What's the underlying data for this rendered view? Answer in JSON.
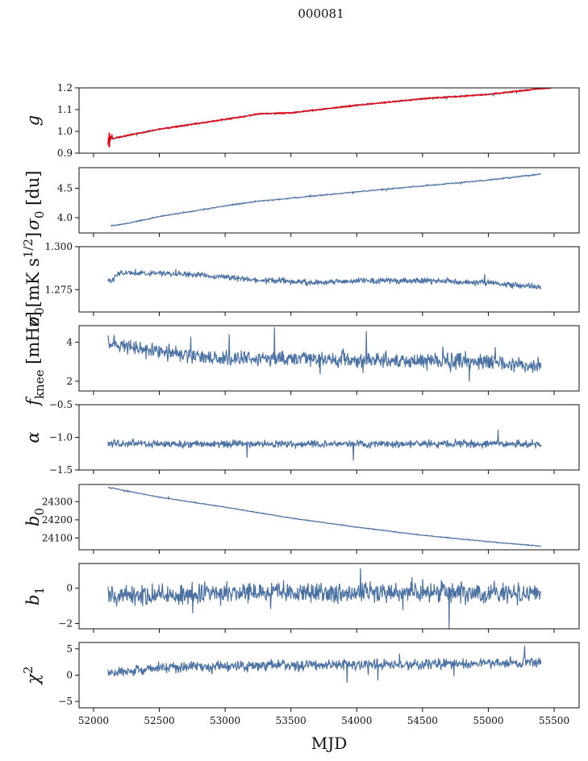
{
  "figure": {
    "title": "000081",
    "xlabel": "MJD",
    "x_ticks": [
      52000,
      52500,
      53000,
      53500,
      54000,
      54500,
      55000,
      55500
    ],
    "x_range": [
      51890,
      55690
    ],
    "line_color": "#4c72a4",
    "overlay_color": "#e8000b"
  },
  "chart_data": [
    {
      "type": "line",
      "ylabel": "g",
      "ylim": [
        0.9,
        1.2
      ],
      "yticks": [
        0.9,
        1.0,
        1.1,
        1.2
      ],
      "ytick_labels": [
        "0.9",
        "1.0",
        "1.1",
        "1.2"
      ],
      "x_start": 52110,
      "x_end": 55400,
      "anchors": [
        [
          52110,
          0.963
        ],
        [
          52250,
          0.98
        ],
        [
          52500,
          1.01
        ],
        [
          53000,
          1.055
        ],
        [
          53250,
          1.08
        ],
        [
          53500,
          1.085
        ],
        [
          54000,
          1.12
        ],
        [
          54500,
          1.15
        ],
        [
          55000,
          1.17
        ],
        [
          55400,
          1.197
        ]
      ],
      "noise": 0.002,
      "overlay": true,
      "overlay_end": 55480
    },
    {
      "type": "line",
      "ylabel": "σ0 [du]",
      "ylim": [
        3.74,
        4.85
      ],
      "yticks": [
        4.0,
        4.5
      ],
      "ytick_labels": [
        "4.0",
        "4.5"
      ],
      "x_start": 52130,
      "x_end": 55400,
      "anchors": [
        [
          52130,
          3.86
        ],
        [
          52250,
          3.9
        ],
        [
          52500,
          4.02
        ],
        [
          53000,
          4.2
        ],
        [
          53250,
          4.28
        ],
        [
          53500,
          4.33
        ],
        [
          54000,
          4.44
        ],
        [
          54500,
          4.54
        ],
        [
          55000,
          4.64
        ],
        [
          55400,
          4.74
        ]
      ],
      "noise": 0.007
    },
    {
      "type": "line",
      "ylabel": "σ0[mK s1/2]",
      "ylim": [
        1.262,
        1.3
      ],
      "yticks": [
        1.275,
        1.3
      ],
      "ytick_labels": [
        "1.275",
        "1.300"
      ],
      "x_start": 52110,
      "x_end": 55400,
      "anchors": [
        [
          52110,
          1.279
        ],
        [
          52200,
          1.285
        ],
        [
          52300,
          1.285
        ],
        [
          52800,
          1.2835
        ],
        [
          53000,
          1.282
        ],
        [
          53300,
          1.2805
        ],
        [
          53700,
          1.279
        ],
        [
          54000,
          1.2805
        ],
        [
          54500,
          1.28
        ],
        [
          55000,
          1.279
        ],
        [
          55300,
          1.277
        ],
        [
          55400,
          1.2765
        ]
      ],
      "noise": 0.0012
    },
    {
      "type": "line",
      "ylabel": "fknee [mHz]",
      "ylim": [
        1.5,
        4.85
      ],
      "yticks": [
        2,
        4
      ],
      "ytick_labels": [
        "2",
        "4"
      ],
      "x_start": 52110,
      "x_end": 55400,
      "anchors": [
        [
          52110,
          4.0
        ],
        [
          52500,
          3.5
        ],
        [
          53000,
          3.2
        ],
        [
          54000,
          3.1
        ],
        [
          55000,
          3.0
        ],
        [
          55400,
          2.8
        ]
      ],
      "noise": 0.3
    },
    {
      "type": "line",
      "ylabel": "α",
      "ylim": [
        -1.5,
        -0.5
      ],
      "yticks": [
        -1.5,
        -1.0,
        -0.5
      ],
      "ytick_labels": [
        "−1.5",
        "−1.0",
        "−0.5"
      ],
      "x_start": 52110,
      "x_end": 55400,
      "anchors": [
        [
          52110,
          -1.1
        ],
        [
          55400,
          -1.1
        ]
      ],
      "noise": 0.04
    },
    {
      "type": "line",
      "ylabel": "b0",
      "ylim": [
        24035,
        24395
      ],
      "yticks": [
        24100,
        24200,
        24300
      ],
      "ytick_labels": [
        "24100",
        "24200",
        "24300"
      ],
      "x_start": 52110,
      "x_end": 55400,
      "anchors": [
        [
          52110,
          24380
        ],
        [
          52500,
          24325
        ],
        [
          53000,
          24270
        ],
        [
          53500,
          24210
        ],
        [
          54000,
          24160
        ],
        [
          54500,
          24115
        ],
        [
          55000,
          24080
        ],
        [
          55400,
          24055
        ]
      ],
      "noise": 1.5
    },
    {
      "type": "line",
      "ylabel": "b1",
      "ylim": [
        -2.3,
        1.4
      ],
      "yticks": [
        -2,
        0
      ],
      "ytick_labels": [
        "−2",
        "0"
      ],
      "x_start": 52110,
      "x_end": 55400,
      "anchors": [
        [
          52110,
          -0.5
        ],
        [
          53000,
          -0.3
        ],
        [
          54000,
          -0.2
        ],
        [
          55400,
          -0.3
        ]
      ],
      "noise": 0.4
    },
    {
      "type": "line",
      "ylabel": "χ2",
      "ylim": [
        -6.2,
        6.2
      ],
      "yticks": [
        -5,
        0,
        5
      ],
      "ytick_labels": [
        "−5",
        "0",
        "5"
      ],
      "x_start": 52110,
      "x_end": 55400,
      "anchors": [
        [
          52110,
          0.3
        ],
        [
          52500,
          1.5
        ],
        [
          53500,
          1.9
        ],
        [
          54500,
          2.1
        ],
        [
          55400,
          2.4
        ]
      ],
      "noise": 0.7
    }
  ]
}
